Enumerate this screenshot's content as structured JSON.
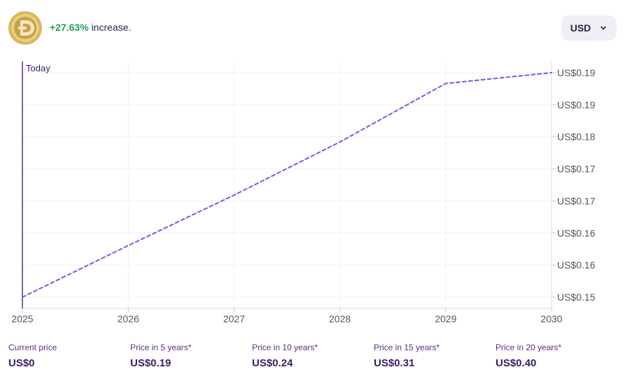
{
  "header": {
    "change_percent": "+27.63%",
    "change_word": "increase.",
    "currency": "USD"
  },
  "colors": {
    "accent": "#7b57e6",
    "positive": "#22a05a",
    "today_line": "#5a2d8c",
    "logo_gold": "#d6b35a"
  },
  "chart_data": {
    "type": "line",
    "marker_label": "Today",
    "x_ticks": [
      "2025",
      "2026",
      "2027",
      "2028",
      "2029",
      "2030"
    ],
    "y_ticks": [
      "US$0.15",
      "US$0.16",
      "US$0.16",
      "US$0.17",
      "US$0.17",
      "US$0.18",
      "US$0.19",
      "US$0.19"
    ],
    "xlim": [
      2025,
      2030
    ],
    "ylim": [
      0.1511,
      0.1929
    ],
    "grid": true,
    "series": [
      {
        "style": "dashed",
        "x": [
          2025,
          2026,
          2027,
          2028,
          2029,
          2030
        ],
        "y": [
          0.1511,
          0.1607,
          0.1701,
          0.18,
          0.1909,
          0.1929
        ]
      }
    ]
  },
  "stats": [
    {
      "label": "Current price",
      "value": "US$0"
    },
    {
      "label": "Price in 5 years*",
      "value": "US$0.19"
    },
    {
      "label": "Price in 10 years*",
      "value": "US$0.24"
    },
    {
      "label": "Price in 15 years*",
      "value": "US$0.31"
    },
    {
      "label": "Price in 20 years*",
      "value": "US$0.40"
    }
  ]
}
